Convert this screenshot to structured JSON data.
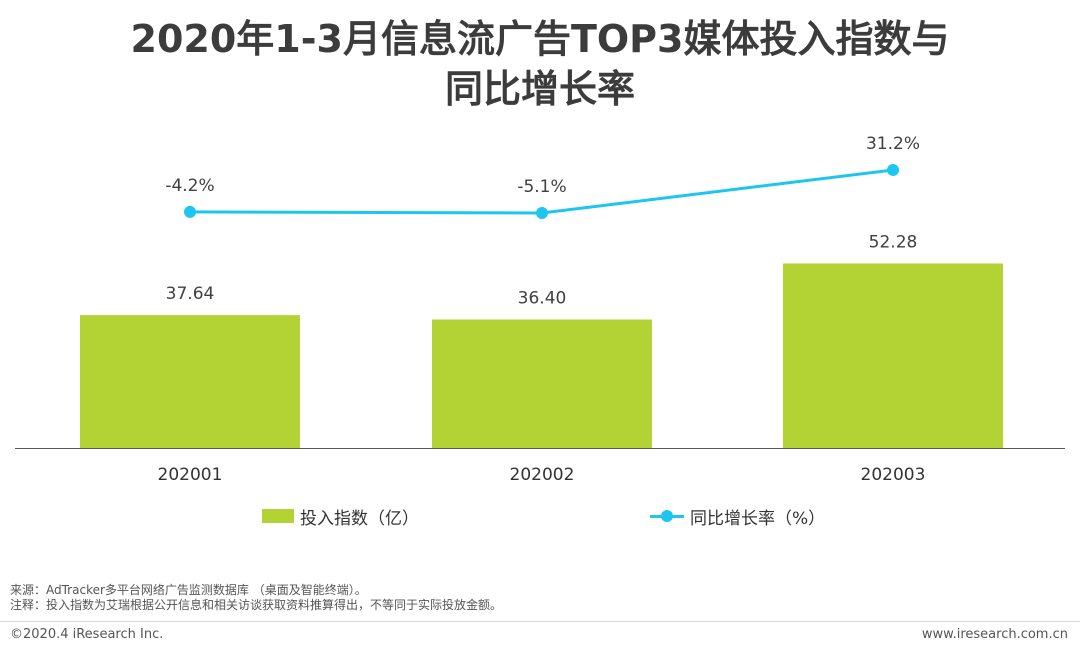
{
  "title": {
    "line1": "2020年1-3月信息流广告TOP3媒体投入指数与",
    "line2": "同比增长率"
  },
  "chart_data": {
    "type": "bar",
    "categories": [
      "202001",
      "202002",
      "202003"
    ],
    "series": [
      {
        "name": "投入指数（亿）",
        "type": "bar",
        "values": [
          37.64,
          36.4,
          52.28
        ],
        "labels": [
          "37.64",
          "36.40",
          "52.28"
        ],
        "color": "#b3d334"
      },
      {
        "name": "同比增长率（%）",
        "type": "line",
        "values": [
          -4.2,
          -5.1,
          31.2
        ],
        "labels": [
          "-4.2%",
          "-5.1%",
          "31.2%"
        ],
        "color": "#1ec6ef"
      }
    ],
    "legend_position": "bottom",
    "grid": false
  },
  "notes": {
    "source": "来源：AdTracker多平台网络广告监测数据库 （桌面及智能终端）。",
    "note": "注释：投入指数为艾瑞根据公开信息和相关访谈获取资料推算得出，不等同于实际投放金额。"
  },
  "footer": {
    "copyright": "©2020.4 iResearch Inc.",
    "website": "www.iresearch.com.cn"
  }
}
